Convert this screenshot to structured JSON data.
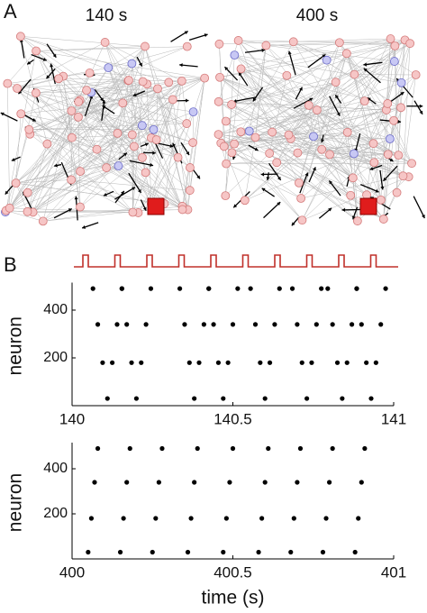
{
  "panel_labels": [
    "A",
    "B"
  ],
  "network_titles": [
    "140 s",
    "400 s"
  ],
  "chart_data": [
    {
      "type": "scatter",
      "ylabel": "neuron",
      "xlim": [
        140,
        141
      ],
      "xticks": [
        140,
        140.5,
        141
      ],
      "ylim": [
        0,
        500
      ],
      "yticks": [
        200,
        400
      ],
      "color": "#000000",
      "x": [
        140.065,
        140.08,
        140.095,
        140.11,
        140.125,
        140.14,
        140.155,
        140.155,
        140.17,
        140.185,
        140.2,
        140.215,
        140.23,
        140.245,
        140.335,
        140.35,
        140.365,
        140.38,
        140.395,
        140.41,
        140.425,
        140.425,
        140.44,
        140.455,
        140.47,
        140.485,
        140.5,
        140.515,
        140.555,
        140.57,
        140.585,
        140.6,
        140.615,
        140.63,
        140.645,
        140.685,
        140.7,
        140.715,
        140.73,
        140.745,
        140.76,
        140.775,
        140.795,
        140.81,
        140.825,
        140.84,
        140.855,
        140.87,
        140.885,
        140.885,
        140.9,
        140.915,
        140.93,
        140.945,
        140.96,
        140.975
      ],
      "values": [
        490,
        340,
        180,
        30,
        180,
        340,
        490,
        490,
        340,
        180,
        30,
        180,
        340,
        490,
        490,
        340,
        180,
        30,
        180,
        340,
        490,
        490,
        340,
        180,
        30,
        180,
        340,
        490,
        490,
        340,
        180,
        30,
        180,
        340,
        490,
        490,
        340,
        180,
        30,
        180,
        340,
        490,
        490,
        340,
        180,
        30,
        180,
        340,
        490,
        490,
        340,
        180,
        30,
        180,
        340,
        490
      ]
    },
    {
      "type": "scatter",
      "ylabel": "neuron",
      "xlabel": "time (s)",
      "xlim": [
        400,
        401
      ],
      "xticks": [
        400,
        400.5,
        401
      ],
      "ylim": [
        0,
        500
      ],
      "yticks": [
        200,
        400
      ],
      "color": "#000000",
      "x": [
        400.05,
        400.06,
        400.07,
        400.08,
        400.15,
        400.16,
        400.17,
        400.18,
        400.25,
        400.26,
        400.27,
        400.28,
        400.36,
        400.37,
        400.38,
        400.39,
        400.47,
        400.48,
        400.49,
        400.5,
        400.58,
        400.59,
        400.6,
        400.61,
        400.68,
        400.69,
        400.7,
        400.71,
        400.78,
        400.79,
        400.8,
        400.81,
        400.88,
        400.89,
        400.9,
        400.91
      ],
      "values": [
        30,
        180,
        340,
        490,
        30,
        180,
        340,
        490,
        30,
        180,
        340,
        490,
        30,
        180,
        340,
        490,
        30,
        180,
        340,
        490,
        30,
        180,
        340,
        490,
        30,
        180,
        340,
        490,
        30,
        180,
        340,
        490,
        30,
        180,
        340,
        490
      ]
    }
  ]
}
